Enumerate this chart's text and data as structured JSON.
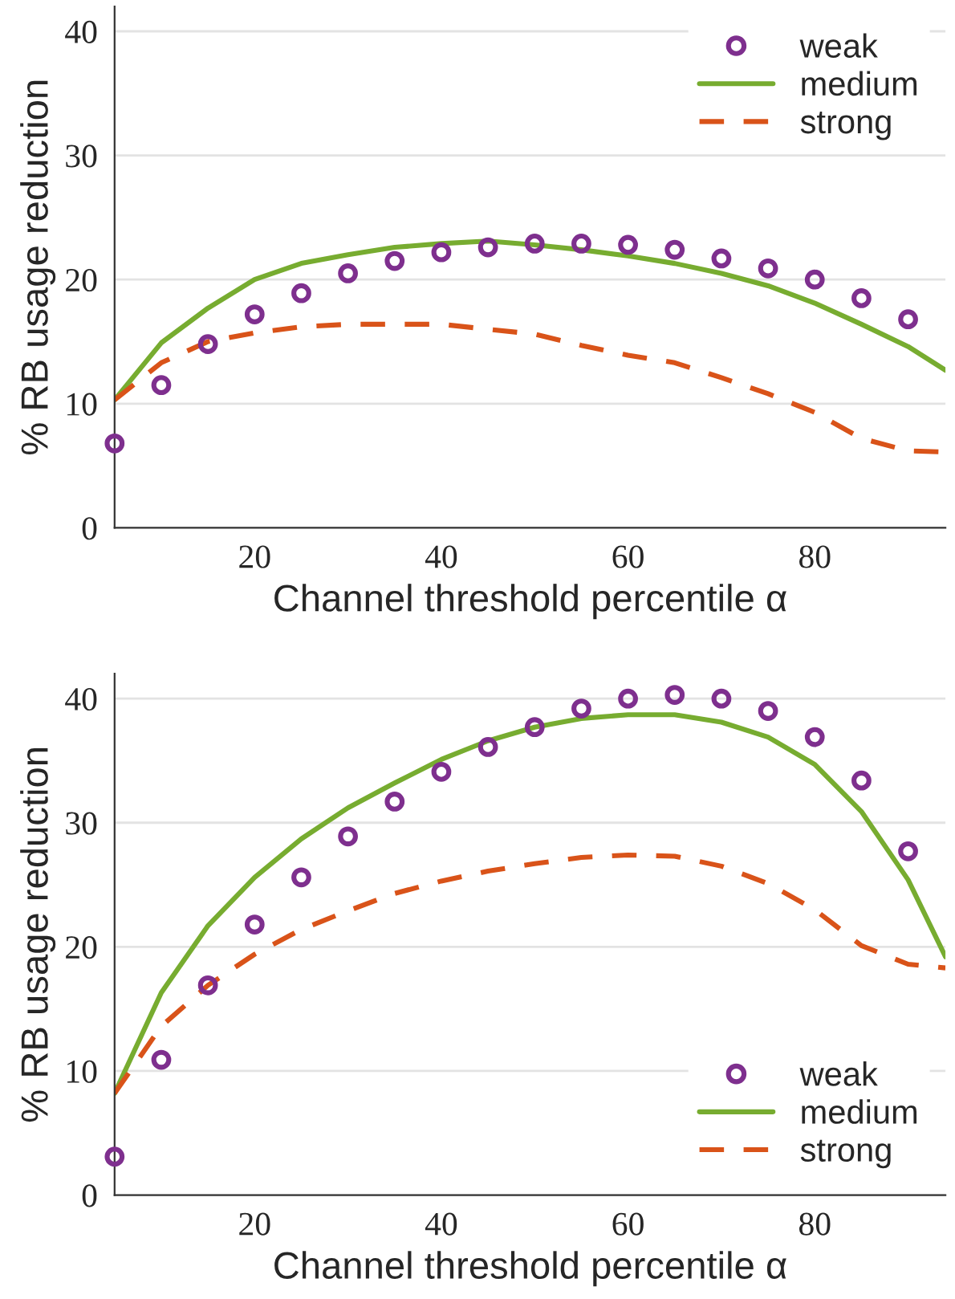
{
  "chart_data": [
    {
      "type": "line",
      "xlabel": "Channel threshold percentile α",
      "ylabel": "% RB usage reduction",
      "xlim": [
        5,
        94
      ],
      "ylim": [
        0,
        42
      ],
      "xticks": [
        20,
        40,
        60,
        80
      ],
      "yticks": [
        0,
        10,
        20,
        30,
        40
      ],
      "grid": "y",
      "legend": "top right",
      "series": [
        {
          "name": "weak",
          "type": "scatter",
          "marker": "circle",
          "color": "#7e2f8e",
          "x": [
            5,
            10,
            15,
            20,
            25,
            30,
            35,
            40,
            45,
            50,
            55,
            60,
            65,
            70,
            75,
            80,
            85,
            90
          ],
          "values": [
            6.8,
            11.5,
            14.8,
            17.2,
            18.9,
            20.5,
            21.5,
            22.2,
            22.6,
            22.9,
            22.9,
            22.8,
            22.4,
            21.7,
            20.9,
            20.0,
            18.5,
            16.8
          ]
        },
        {
          "name": "medium",
          "line_style": "solid",
          "color": "#77ac30",
          "x": [
            5,
            10,
            15,
            20,
            25,
            30,
            35,
            40,
            45,
            50,
            55,
            60,
            65,
            70,
            75,
            80,
            85,
            90,
            94
          ],
          "values": [
            10.3,
            14.9,
            17.7,
            20.0,
            21.3,
            22.0,
            22.6,
            22.9,
            23.1,
            22.8,
            22.4,
            21.9,
            21.3,
            20.5,
            19.5,
            18.1,
            16.4,
            14.6,
            12.7
          ]
        },
        {
          "name": "strong",
          "line_style": "dashed",
          "color": "#d95319",
          "x": [
            5,
            10,
            15,
            20,
            25,
            30,
            35,
            40,
            45,
            50,
            55,
            60,
            65,
            70,
            75,
            80,
            85,
            90,
            94
          ],
          "values": [
            10.3,
            13.3,
            15.0,
            15.7,
            16.2,
            16.4,
            16.4,
            16.4,
            16.0,
            15.6,
            14.7,
            13.9,
            13.3,
            12.1,
            10.8,
            9.3,
            7.2,
            6.2,
            6.1
          ]
        }
      ]
    },
    {
      "type": "line",
      "xlabel": "Channel threshold percentile α",
      "ylabel": "% RB usage reduction",
      "xlim": [
        5,
        94
      ],
      "ylim": [
        0,
        42
      ],
      "xticks": [
        20,
        40,
        60,
        80
      ],
      "yticks": [
        0,
        10,
        20,
        30,
        40
      ],
      "grid": "y",
      "legend": "bottom right",
      "series": [
        {
          "name": "weak",
          "type": "scatter",
          "marker": "circle",
          "color": "#7e2f8e",
          "x": [
            5,
            10,
            15,
            20,
            25,
            30,
            35,
            40,
            45,
            50,
            55,
            60,
            65,
            70,
            75,
            80,
            85,
            90
          ],
          "values": [
            3.1,
            10.9,
            16.9,
            21.8,
            25.6,
            28.9,
            31.7,
            34.1,
            36.1,
            37.7,
            39.2,
            40.0,
            40.3,
            40.0,
            39.0,
            36.9,
            33.4,
            27.7
          ]
        },
        {
          "name": "medium",
          "line_style": "solid",
          "color": "#77ac30",
          "x": [
            5,
            10,
            15,
            20,
            25,
            30,
            35,
            40,
            45,
            50,
            55,
            60,
            65,
            70,
            75,
            80,
            85,
            90,
            94
          ],
          "values": [
            8.2,
            16.3,
            21.7,
            25.6,
            28.7,
            31.2,
            33.2,
            35.1,
            36.6,
            37.7,
            38.4,
            38.7,
            38.7,
            38.1,
            36.9,
            34.7,
            30.9,
            25.4,
            19.2
          ]
        },
        {
          "name": "strong",
          "line_style": "dashed",
          "color": "#d95319",
          "x": [
            5,
            10,
            15,
            20,
            25,
            30,
            35,
            40,
            45,
            50,
            55,
            60,
            65,
            70,
            75,
            80,
            85,
            90,
            94
          ],
          "values": [
            8.2,
            13.6,
            16.9,
            19.4,
            21.4,
            22.9,
            24.3,
            25.3,
            26.1,
            26.7,
            27.2,
            27.4,
            27.3,
            26.5,
            25.1,
            23.0,
            20.1,
            18.6,
            18.3
          ]
        }
      ]
    }
  ]
}
